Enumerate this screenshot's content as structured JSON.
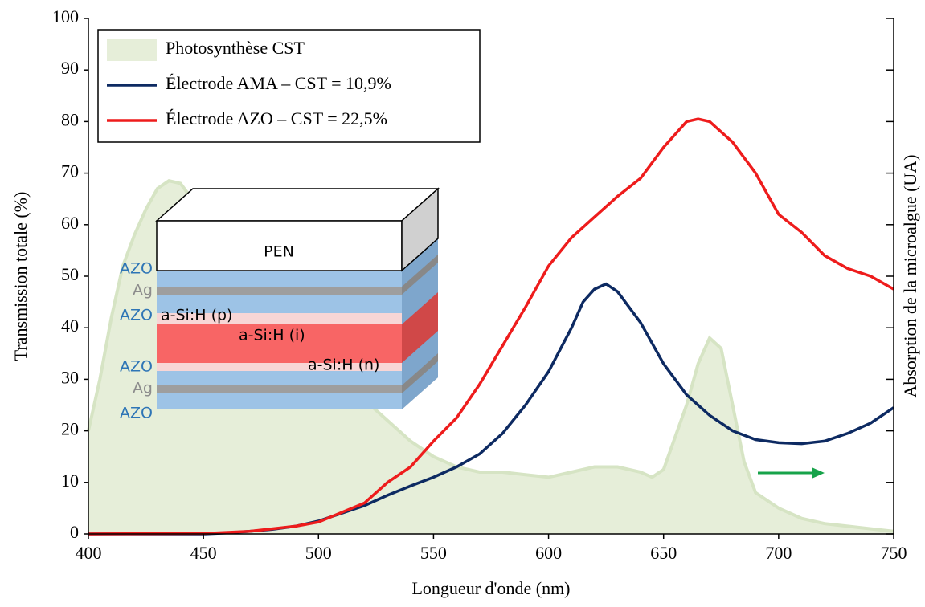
{
  "chart_data": {
    "type": "line",
    "xlabel": "Longueur d'onde (nm)",
    "ylabel": "Transmission totale (%)",
    "y2label": "Absorption de la microalgue (UA)",
    "xlim": [
      400,
      750
    ],
    "xticks": [
      400,
      450,
      500,
      550,
      600,
      650,
      700,
      750
    ],
    "ylim": [
      0,
      100
    ],
    "yticks": [
      0,
      10,
      20,
      30,
      40,
      50,
      60,
      70,
      80,
      90,
      100
    ],
    "y2lim": [
      0,
      100
    ],
    "legend": "upper left",
    "series": [
      {
        "name": "Photosynthèse CST",
        "kind": "area",
        "axis": "y2",
        "color": "#e6eed9",
        "edge_color": "#d6e4c4",
        "x": [
          400,
          405,
          410,
          415,
          420,
          425,
          430,
          435,
          440,
          445,
          450,
          460,
          470,
          480,
          490,
          500,
          510,
          520,
          530,
          540,
          550,
          560,
          570,
          580,
          590,
          600,
          610,
          620,
          630,
          640,
          645,
          650,
          660,
          665,
          670,
          675,
          680,
          685,
          690,
          700,
          710,
          720,
          730,
          740,
          750
        ],
        "values": [
          20,
          30,
          42,
          52,
          58,
          63,
          67,
          68.5,
          68,
          65,
          60,
          52,
          47,
          43,
          38,
          34,
          30,
          26,
          22,
          18,
          15,
          13,
          12,
          12,
          11.5,
          11,
          12,
          13,
          13,
          12,
          11,
          12.5,
          25,
          33,
          38,
          36,
          25,
          14,
          8,
          5,
          3,
          2,
          1.5,
          1,
          0.5
        ]
      },
      {
        "name": "Électrode AMA – CST = 10,9%",
        "color": "#0d2a62",
        "x": [
          400,
          450,
          460,
          470,
          480,
          490,
          500,
          510,
          520,
          530,
          540,
          550,
          560,
          570,
          580,
          590,
          600,
          610,
          615,
          620,
          625,
          630,
          640,
          650,
          660,
          670,
          680,
          690,
          700,
          710,
          720,
          730,
          740,
          750
        ],
        "values": [
          0,
          0,
          0.2,
          0.5,
          0.9,
          1.5,
          2.5,
          4,
          5.5,
          7.5,
          9.3,
          11,
          13,
          15.5,
          19.5,
          25,
          31.5,
          40,
          45,
          47.5,
          48.5,
          47,
          41,
          33,
          27,
          23,
          20,
          18.3,
          17.7,
          17.5,
          18,
          19.5,
          21.5,
          24.5
        ]
      },
      {
        "name": "Électrode AZO – CST = 22,5%",
        "color": "#ee1c1c",
        "x": [
          400,
          450,
          470,
          490,
          500,
          520,
          530,
          540,
          550,
          560,
          570,
          580,
          590,
          600,
          610,
          620,
          630,
          640,
          650,
          660,
          665,
          670,
          680,
          690,
          700,
          710,
          720,
          730,
          740,
          750
        ],
        "values": [
          0,
          0.1,
          0.5,
          1.5,
          2.3,
          6,
          10,
          13,
          18,
          22.5,
          29,
          36.5,
          44,
          52,
          57.5,
          61.5,
          65.5,
          69,
          75,
          80,
          80.5,
          80,
          76,
          70,
          62,
          58.5,
          54,
          51.5,
          50,
          47.5
        ]
      }
    ],
    "inset_labels": [
      "PEN",
      "AZO",
      "Ag",
      "AZO",
      "a-Si:H (p)",
      "a-Si:H (i)",
      "AZO",
      "a-Si:H (n)",
      "Ag",
      "AZO"
    ]
  }
}
